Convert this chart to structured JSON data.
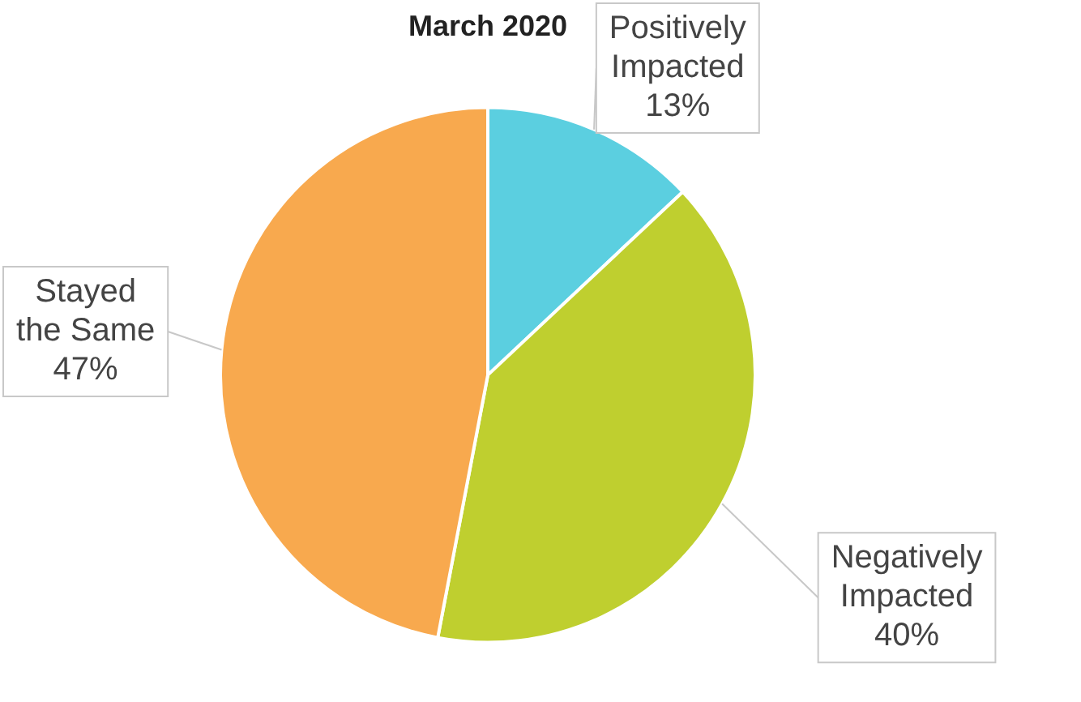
{
  "chart_data": {
    "type": "pie",
    "title": "March 2020",
    "categories": [
      "Positively Impacted",
      "Negatively Impacted",
      "Stayed the Same"
    ],
    "values": [
      13,
      40,
      47
    ],
    "colors": [
      "#5bcfe0",
      "#bfcf2f",
      "#f8a94e"
    ],
    "value_labels": [
      "13%",
      "40%",
      "47%"
    ],
    "legend": false
  }
}
